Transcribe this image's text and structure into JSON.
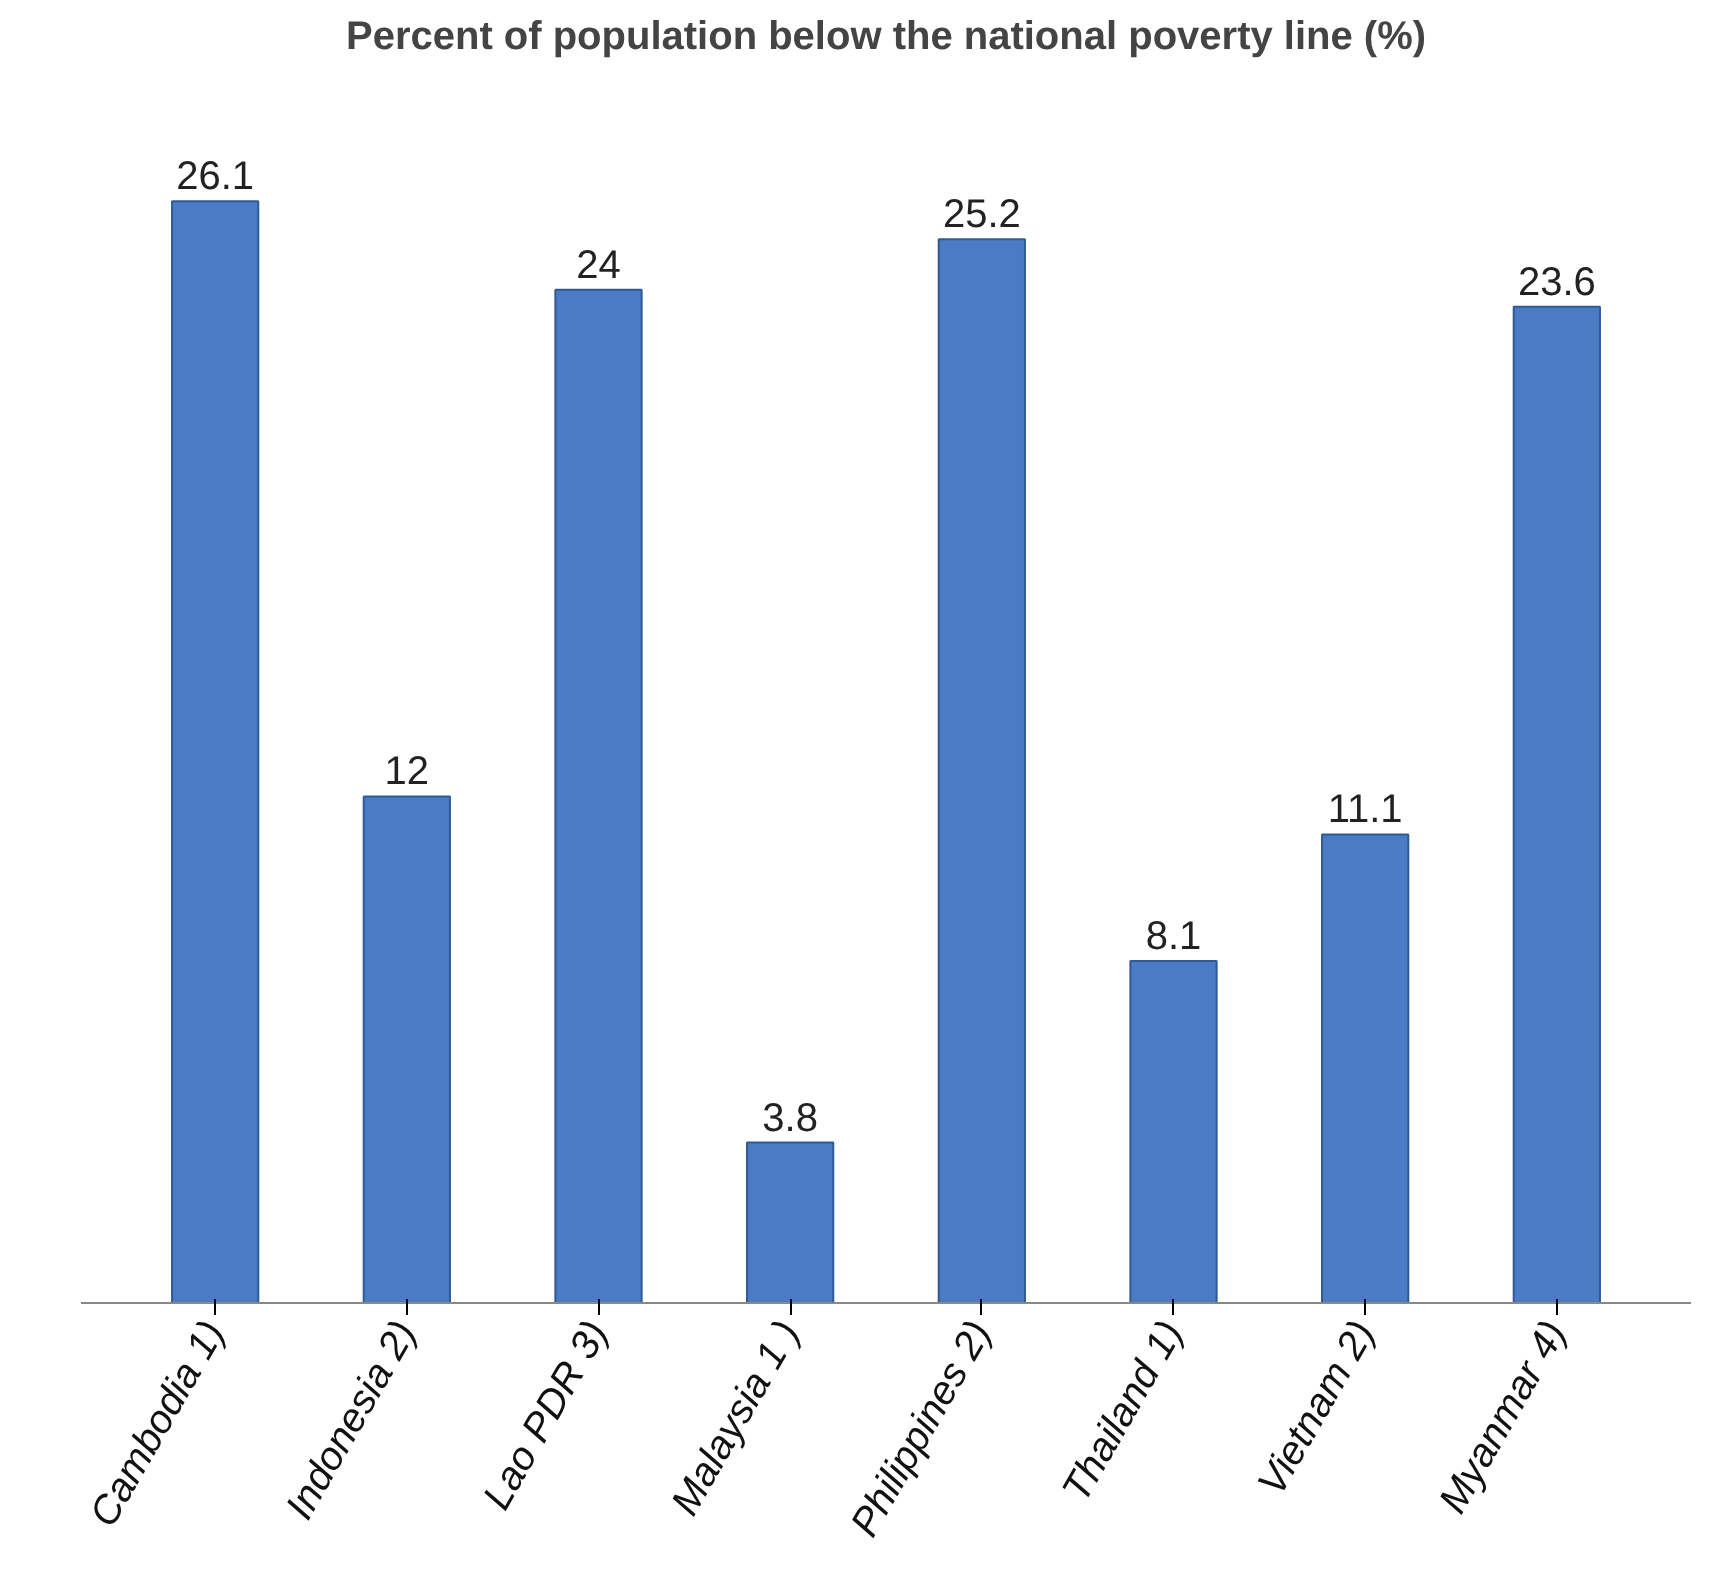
{
  "chart_data": {
    "type": "bar",
    "title": "Percent of population below the national poverty line (%)",
    "categories": [
      "Cambodia 1)",
      "Indonesia 2)",
      "Lao PDR 3)",
      "Malaysia 1 )",
      "Philippines 2)",
      "Thailand 1)",
      "Vietnam 2)",
      "Myanmar 4)"
    ],
    "values": [
      26.1,
      12,
      24,
      3.8,
      25.2,
      8.1,
      11.1,
      23.6
    ],
    "color": "#4a7bc4",
    "data_labels": true
  }
}
